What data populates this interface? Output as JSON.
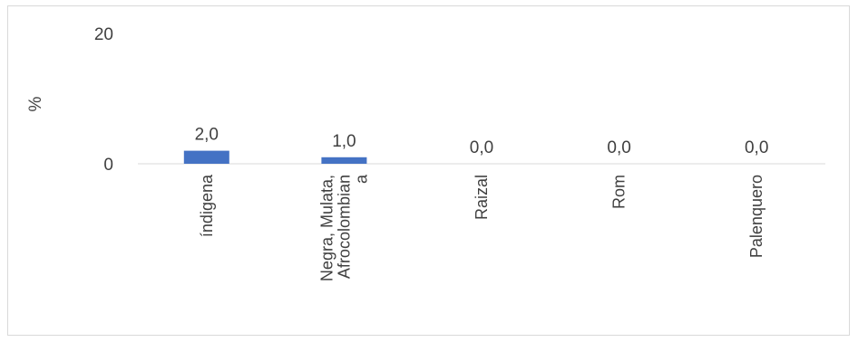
{
  "chart_data": {
    "type": "bar",
    "title": "",
    "xlabel": "",
    "ylabel": "%",
    "ylim": [
      0,
      20
    ],
    "yticks": [
      "0",
      "20"
    ],
    "categories": [
      [
        "índigena"
      ],
      [
        "Negra, Mulata,",
        "Afrocolombian",
        "a"
      ],
      [
        "Raizal"
      ],
      [
        "Rom"
      ],
      [
        "Palenquero"
      ]
    ],
    "values": [
      2.0,
      1.0,
      0.0,
      0.0,
      0.0
    ],
    "data_labels": [
      "2,0",
      "1,0",
      "0,0",
      "0,0",
      "0,0"
    ],
    "bar_color": "#4472c4",
    "gridlines": false,
    "legend": "none"
  }
}
